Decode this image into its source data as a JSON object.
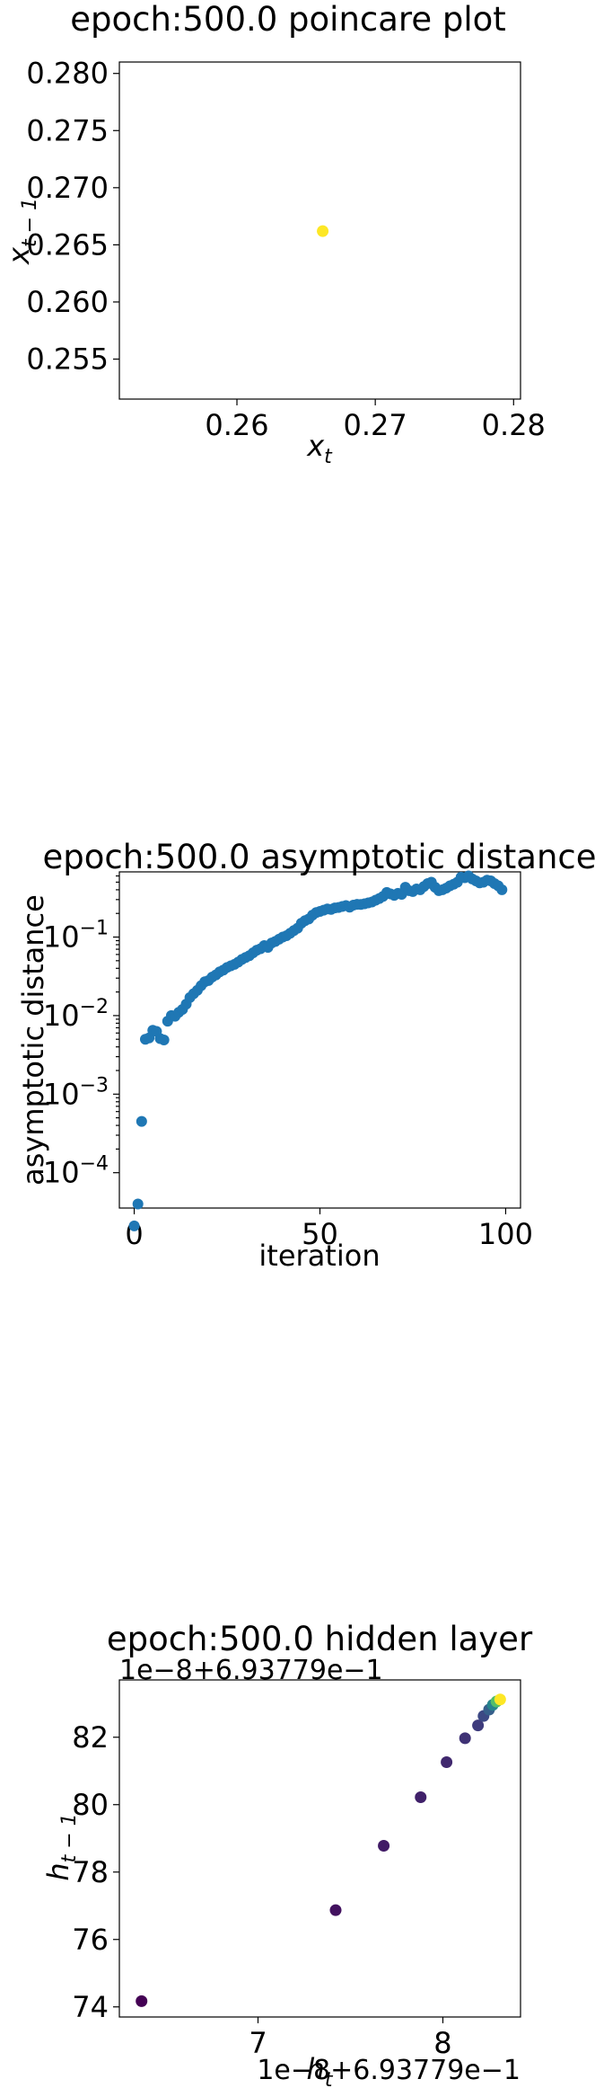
{
  "chart_data": [
    {
      "type": "scatter",
      "title": "epoch:500.0 poincare plot",
      "xlabel": "x_t",
      "ylabel": "x_{t-1}",
      "xlim": [
        0.2515,
        0.2805
      ],
      "ylim": [
        0.2515,
        0.281
      ],
      "xticks": [
        0.26,
        0.27,
        0.28
      ],
      "xtick_labels": [
        "0.26",
        "0.27",
        "0.28"
      ],
      "yticks": [
        0.255,
        0.26,
        0.265,
        0.27,
        0.275,
        0.28
      ],
      "ytick_labels": [
        "0.255",
        "0.260",
        "0.265",
        "0.270",
        "0.275",
        "0.280"
      ],
      "grid": false,
      "color": "#fde725",
      "points": [
        {
          "x": 0.2662,
          "y": 0.2662
        }
      ]
    },
    {
      "type": "scatter",
      "title": "epoch:500.0 asymptotic distance",
      "xlabel": "iteration",
      "ylabel": "asymptotic distance",
      "yscale": "log",
      "xlim": [
        -4,
        104
      ],
      "ylim_log10": [
        -4.45,
        -0.17
      ],
      "xticks": [
        0,
        50,
        100
      ],
      "xtick_labels": [
        "0",
        "50",
        "100"
      ],
      "yticks_log10": [
        -4,
        -3,
        -2,
        -1
      ],
      "ytick_labels": [
        "10",
        "10",
        "10",
        "10"
      ],
      "ytick_exponents": [
        "−4",
        "−3",
        "−2",
        "−1"
      ],
      "grid": false,
      "color": "#1f77b4",
      "x": [
        0,
        1,
        2,
        3,
        4,
        5,
        6,
        7,
        8,
        9,
        10,
        11,
        12,
        13,
        14,
        15,
        16,
        17,
        18,
        19,
        20,
        21,
        22,
        23,
        24,
        25,
        26,
        27,
        28,
        29,
        30,
        31,
        32,
        33,
        34,
        35,
        36,
        37,
        38,
        39,
        40,
        41,
        42,
        43,
        44,
        45,
        46,
        47,
        48,
        49,
        50,
        51,
        52,
        53,
        54,
        55,
        56,
        57,
        58,
        59,
        60,
        61,
        62,
        63,
        64,
        65,
        66,
        67,
        68,
        69,
        70,
        71,
        72,
        73,
        74,
        75,
        76,
        77,
        78,
        79,
        80,
        81,
        82,
        83,
        84,
        85,
        86,
        87,
        88,
        89,
        90,
        91,
        92,
        93,
        94,
        95,
        96,
        97,
        98,
        99
      ],
      "y": [
        2.1e-05,
        4e-05,
        0.00045,
        0.005,
        0.0052,
        0.0065,
        0.0063,
        0.0051,
        0.0049,
        0.0085,
        0.01,
        0.0098,
        0.011,
        0.012,
        0.014,
        0.017,
        0.019,
        0.021,
        0.024,
        0.027,
        0.028,
        0.031,
        0.033,
        0.036,
        0.038,
        0.041,
        0.043,
        0.045,
        0.048,
        0.052,
        0.055,
        0.058,
        0.063,
        0.068,
        0.071,
        0.078,
        0.074,
        0.084,
        0.088,
        0.094,
        0.1,
        0.104,
        0.112,
        0.121,
        0.13,
        0.15,
        0.162,
        0.17,
        0.19,
        0.205,
        0.212,
        0.22,
        0.228,
        0.225,
        0.235,
        0.238,
        0.245,
        0.252,
        0.24,
        0.255,
        0.261,
        0.26,
        0.265,
        0.272,
        0.28,
        0.295,
        0.31,
        0.33,
        0.37,
        0.355,
        0.34,
        0.36,
        0.35,
        0.43,
        0.39,
        0.38,
        0.41,
        0.4,
        0.44,
        0.48,
        0.5,
        0.43,
        0.39,
        0.4,
        0.42,
        0.45,
        0.47,
        0.5,
        0.58,
        0.57,
        0.6,
        0.55,
        0.52,
        0.49,
        0.5,
        0.53,
        0.52,
        0.48,
        0.45,
        0.4
      ]
    },
    {
      "type": "scatter",
      "title": "epoch:500.0 hidden layer",
      "xlabel": "h_t",
      "ylabel": "h_{t-1}",
      "offset_text_x": "1e−8+6.93779e−1",
      "offset_text_y": "1e−8+6.93779e−1",
      "xlim": [
        6.25,
        8.42
      ],
      "ylim": [
        73.7,
        83.7
      ],
      "xticks": [
        7,
        8
      ],
      "xtick_labels": [
        "7",
        "8"
      ],
      "yticks": [
        74,
        76,
        78,
        80,
        82
      ],
      "ytick_labels": [
        "74",
        "76",
        "78",
        "80",
        "82"
      ],
      "grid": false,
      "colormap": "viridis",
      "points": [
        {
          "x": 6.37,
          "y": 74.17,
          "c": 0.0
        },
        {
          "x": 7.42,
          "y": 76.87,
          "c": 0.05
        },
        {
          "x": 7.68,
          "y": 78.78,
          "c": 0.08
        },
        {
          "x": 7.88,
          "y": 80.22,
          "c": 0.1
        },
        {
          "x": 8.02,
          "y": 81.26,
          "c": 0.12
        },
        {
          "x": 8.12,
          "y": 81.97,
          "c": 0.15
        },
        {
          "x": 8.19,
          "y": 82.35,
          "c": 0.18
        },
        {
          "x": 8.22,
          "y": 82.63,
          "c": 0.22
        },
        {
          "x": 8.25,
          "y": 82.82,
          "c": 0.3
        },
        {
          "x": 8.27,
          "y": 82.96,
          "c": 0.45
        },
        {
          "x": 8.29,
          "y": 83.06,
          "c": 0.7
        },
        {
          "x": 8.31,
          "y": 83.12,
          "c": 1.0
        }
      ]
    }
  ]
}
